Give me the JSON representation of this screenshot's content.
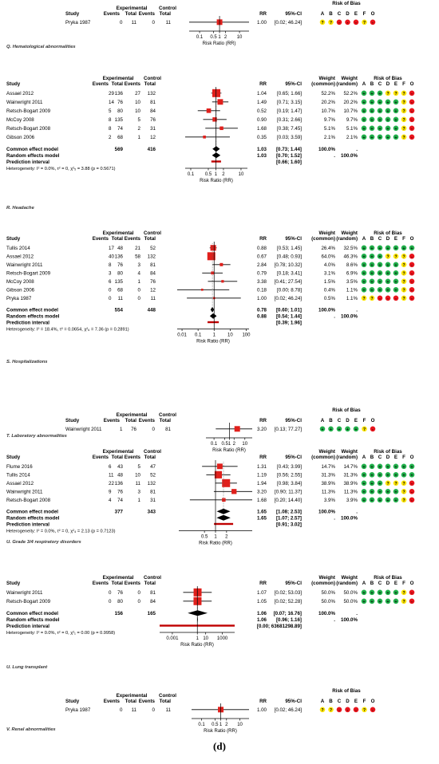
{
  "figure_label": "(d)",
  "labels": {
    "study": "Study",
    "experimental": "Experimental",
    "control": "Control",
    "events": "Events",
    "total": "Total",
    "rr": "RR",
    "ci": "95%-CI",
    "weight": "Weight",
    "common": "(common)",
    "random": "(random)",
    "rob": "Risk of Bias",
    "rob_letters": [
      "A",
      "B",
      "C",
      "D",
      "E",
      "F",
      "O"
    ],
    "common_model": "Common effect model",
    "random_model": "Random effects model",
    "prediction": "Prediction interval",
    "xlabel": "Risk Ratio (RR)"
  },
  "colors": {
    "low": "#22b14c",
    "unclear": "#ffe600",
    "high": "#e8141c",
    "marker": "#e0201c"
  },
  "chart_data": [
    {
      "type": "forest",
      "title": "Q. Hematological abnormalities",
      "columns": "simple",
      "xlim": [
        0.03,
        30
      ],
      "ticks": [
        "0.1",
        "0.5",
        "1",
        "2",
        "10"
      ],
      "studies": [
        {
          "study": "Pryka 1987",
          "exp_events": "0",
          "exp_total": "11",
          "ctl_events": "0",
          "ctl_total": "11",
          "rr": 1.0,
          "rr_text": "1.00",
          "lo": 0.02,
          "hi": 46.24,
          "ci_text": "[0.02; 46.24]",
          "w": 1,
          "rob": "uuhhhuh"
        }
      ]
    },
    {
      "type": "forest",
      "title": "R. Headache",
      "columns": "full",
      "xlim": [
        0.06,
        18
      ],
      "ticks": [
        "0.1",
        "0.5",
        "1",
        "2",
        "10"
      ],
      "studies": [
        {
          "study": "Assael 2012",
          "exp_events": "29",
          "exp_total": "136",
          "ctl_events": "27",
          "ctl_total": "132",
          "rr": 1.04,
          "rr_text": "1.04",
          "lo": 0.65,
          "hi": 1.66,
          "ci_text": "[0.65; 1.66]",
          "w_common": "52.2%",
          "w_random": "52.2%",
          "w": 52.2,
          "rob": "llluuuh"
        },
        {
          "study": "Wainwright 2011",
          "exp_events": "14",
          "exp_total": "76",
          "ctl_events": "10",
          "ctl_total": "81",
          "rr": 1.49,
          "rr_text": "1.49",
          "lo": 0.71,
          "hi": 3.15,
          "ci_text": "[0.71; 3.15]",
          "w_common": "20.2%",
          "w_random": "20.2%",
          "w": 20.2,
          "rob": "llllluh"
        },
        {
          "study": "Retsch-Bogart 2009",
          "exp_events": "5",
          "exp_total": "80",
          "ctl_events": "10",
          "ctl_total": "84",
          "rr": 0.52,
          "rr_text": "0.52",
          "lo": 0.19,
          "hi": 1.47,
          "ci_text": "[0.19; 1.47]",
          "w_common": "10.7%",
          "w_random": "10.7%",
          "w": 10.7,
          "rob": "llllluh"
        },
        {
          "study": "McCoy 2008",
          "exp_events": "8",
          "exp_total": "135",
          "ctl_events": "5",
          "ctl_total": "76",
          "rr": 0.9,
          "rr_text": "0.90",
          "lo": 0.31,
          "hi": 2.66,
          "ci_text": "[0.31; 2.66]",
          "w_common": "9.7%",
          "w_random": "9.7%",
          "w": 9.7,
          "rob": "llllluh"
        },
        {
          "study": "Retsch-Bogart 2008",
          "exp_events": "8",
          "exp_total": "74",
          "ctl_events": "2",
          "ctl_total": "31",
          "rr": 1.68,
          "rr_text": "1.68",
          "lo": 0.38,
          "hi": 7.45,
          "ci_text": "[0.38; 7.45]",
          "w_common": "5.1%",
          "w_random": "5.1%",
          "w": 5.1,
          "rob": "llllluh"
        },
        {
          "study": "Gibson 2006",
          "exp_events": "2",
          "exp_total": "68",
          "ctl_events": "1",
          "ctl_total": "12",
          "rr": 0.35,
          "rr_text": "0.35",
          "lo": 0.03,
          "hi": 3.59,
          "ci_text": "[0.03; 3.59]",
          "w_common": "2.1%",
          "w_random": "2.1%",
          "w": 2.1,
          "rob": "llllluh"
        }
      ],
      "common": {
        "exp_total": "569",
        "ctl_total": "416",
        "rr": 1.03,
        "rr_text": "1.03",
        "lo": 0.73,
        "hi": 1.44,
        "ci_text": "[0.73; 1.44]",
        "w_common": "100.0%",
        "w_random": "."
      },
      "random": {
        "rr": 1.03,
        "rr_text": "1.03",
        "lo": 0.7,
        "hi": 1.52,
        "ci_text": "[0.70; 1.52]",
        "w_common": ".",
        "w_random": "100.0%"
      },
      "prediction": {
        "lo": 0.66,
        "hi": 1.6,
        "ci_text": "[0.66; 1.60]"
      },
      "heterogeneity": "Heterogeneity: I² = 0.0%, τ² = 0, χ²₅ = 3.88 (p = 0.5671)"
    },
    {
      "type": "forest",
      "title": "S. Hospitalizations",
      "columns": "full",
      "xlim": [
        0.005,
        150
      ],
      "ticks": [
        "0.01",
        "0.1",
        "1",
        "10",
        "100"
      ],
      "studies": [
        {
          "study": "Tullis 2014",
          "exp_events": "17",
          "exp_total": "48",
          "ctl_events": "21",
          "ctl_total": "52",
          "rr": 0.88,
          "rr_text": "0.88",
          "lo": 0.53,
          "hi": 1.45,
          "ci_text": "[0.53; 1.45]",
          "w_common": "26.4%",
          "w_random": "32.5%",
          "w": 26.4,
          "rob": "lllllll"
        },
        {
          "study": "Assael 2012",
          "exp_events": "40",
          "exp_total": "136",
          "ctl_events": "58",
          "ctl_total": "132",
          "rr": 0.67,
          "rr_text": "0.67",
          "lo": 0.48,
          "hi": 0.93,
          "ci_text": "[0.48; 0.93]",
          "w_common": "64.0%",
          "w_random": "46.3%",
          "w": 64.0,
          "rob": "llluuuh"
        },
        {
          "study": "Wainwright 2011",
          "exp_events": "8",
          "exp_total": "76",
          "ctl_events": "3",
          "ctl_total": "81",
          "rr": 2.84,
          "rr_text": "2.84",
          "lo": 0.78,
          "hi": 10.32,
          "ci_text": "[0.78; 10.32]",
          "w_common": "4.0%",
          "w_random": "8.6%",
          "w": 4.0,
          "rob": "llllluh"
        },
        {
          "study": "Retsch-Bogart 2009",
          "exp_events": "3",
          "exp_total": "80",
          "ctl_events": "4",
          "ctl_total": "84",
          "rr": 0.79,
          "rr_text": "0.79",
          "lo": 0.18,
          "hi": 3.41,
          "ci_text": "[0.18; 3.41]",
          "w_common": "3.1%",
          "w_random": "6.9%",
          "w": 3.1,
          "rob": "llllluh"
        },
        {
          "study": "McCoy 2008",
          "exp_events": "6",
          "exp_total": "135",
          "ctl_events": "1",
          "ctl_total": "76",
          "rr": 3.38,
          "rr_text": "3.38",
          "lo": 0.41,
          "hi": 27.54,
          "ci_text": "[0.41; 27.54]",
          "w_common": "1.5%",
          "w_random": "3.5%",
          "w": 1.5,
          "rob": "llllluh"
        },
        {
          "study": "Gibson 2006",
          "exp_events": "0",
          "exp_total": "68",
          "ctl_events": "0",
          "ctl_total": "12",
          "rr": 0.18,
          "rr_text": "0.18",
          "lo": 0.0,
          "hi": 8.78,
          "ci_text": "[0.00; 8.78]",
          "w_common": "0.4%",
          "w_random": "1.1%",
          "w": 0.4,
          "rob": "llllluh"
        },
        {
          "study": "Pryka 1987",
          "exp_events": "0",
          "exp_total": "11",
          "ctl_events": "0",
          "ctl_total": "11",
          "rr": 1.0,
          "rr_text": "1.00",
          "lo": 0.02,
          "hi": 46.24,
          "ci_text": "[0.02; 46.24]",
          "w_common": "0.5%",
          "w_random": "1.1%",
          "w": 0.5,
          "rob": "uuhhhuh"
        }
      ],
      "common": {
        "exp_total": "554",
        "ctl_total": "448",
        "rr": 0.78,
        "rr_text": "0.78",
        "lo": 0.6,
        "hi": 1.01,
        "ci_text": "[0.60; 1.01]",
        "w_common": "100.0%",
        "w_random": "."
      },
      "random": {
        "rr": 0.88,
        "rr_text": "0.88",
        "lo": 0.54,
        "hi": 1.44,
        "ci_text": "[0.54; 1.44]",
        "w_common": ".",
        "w_random": "100.0%"
      },
      "prediction": {
        "lo": 0.39,
        "hi": 1.96,
        "ci_text": "[0.39; 1.96]"
      },
      "heterogeneity": "Heterogeneity: I² = 18.4%, τ² = 0.0654, χ²₆ = 7.36 (p = 0.2891)"
    },
    {
      "type": "forest",
      "title": "T. Laboratory abnormalities",
      "columns": "simple",
      "xlim": [
        0.03,
        30
      ],
      "ticks": [
        "0.1",
        "0.5",
        "1",
        "2",
        "10"
      ],
      "studies": [
        {
          "study": "Wainwright 2011",
          "exp_events": "1",
          "exp_total": "76",
          "ctl_events": "0",
          "ctl_total": "81",
          "rr": 3.2,
          "rr_text": "3.20",
          "lo": 0.13,
          "hi": 77.27,
          "ci_text": "[0.13; 77.27]",
          "w": 1,
          "rob": "llllluh"
        }
      ]
    },
    {
      "type": "forest",
      "title": "U. Grade 3/4 respiratory disorders",
      "columns": "full",
      "xlim": [
        0.1,
        10
      ],
      "ticks": [
        "0.5",
        "1",
        "2"
      ],
      "studies": [
        {
          "study": "Flume 2016",
          "exp_events": "6",
          "exp_total": "43",
          "ctl_events": "5",
          "ctl_total": "47",
          "rr": 1.31,
          "rr_text": "1.31",
          "lo": 0.43,
          "hi": 3.99,
          "ci_text": "[0.43; 3.99]",
          "w_common": "14.7%",
          "w_random": "14.7%",
          "w": 14.7,
          "rob": "lllllll"
        },
        {
          "study": "Tullis 2014",
          "exp_events": "11",
          "exp_total": "48",
          "ctl_events": "10",
          "ctl_total": "52",
          "rr": 1.19,
          "rr_text": "1.19",
          "lo": 0.56,
          "hi": 2.55,
          "ci_text": "[0.56; 2.55]",
          "w_common": "31.3%",
          "w_random": "31.3%",
          "w": 31.3,
          "rob": "lllllll"
        },
        {
          "study": "Assael 2012",
          "exp_events": "22",
          "exp_total": "136",
          "ctl_events": "11",
          "ctl_total": "132",
          "rr": 1.94,
          "rr_text": "1.94",
          "lo": 0.98,
          "hi": 3.84,
          "ci_text": "[0.98; 3.84]",
          "w_common": "38.9%",
          "w_random": "38.9%",
          "w": 38.9,
          "rob": "llluuuh"
        },
        {
          "study": "Wainwright 2011",
          "exp_events": "9",
          "exp_total": "76",
          "ctl_events": "3",
          "ctl_total": "81",
          "rr": 3.2,
          "rr_text": "3.20",
          "lo": 0.9,
          "hi": 11.37,
          "ci_text": "[0.90; 11.37]",
          "w_common": "11.3%",
          "w_random": "11.3%",
          "w": 11.3,
          "rob": "llllluh"
        },
        {
          "study": "Retsch-Bogart 2008",
          "exp_events": "4",
          "exp_total": "74",
          "ctl_events": "1",
          "ctl_total": "31",
          "rr": 1.68,
          "rr_text": "1.68",
          "lo": 0.2,
          "hi": 14.4,
          "ci_text": "[0.20; 14.40]",
          "w_common": "3.9%",
          "w_random": "3.9%",
          "w": 3.9,
          "rob": "llllluh"
        }
      ],
      "common": {
        "exp_total": "377",
        "ctl_total": "343",
        "rr": 1.65,
        "rr_text": "1.65",
        "lo": 1.08,
        "hi": 2.53,
        "ci_text": "[1.08; 2.53]",
        "w_common": "100.0%",
        "w_random": "."
      },
      "random": {
        "rr": 1.65,
        "rr_text": "1.65",
        "lo": 1.07,
        "hi": 2.57,
        "ci_text": "[1.07; 2.57]",
        "w_common": ".",
        "w_random": "100.0%"
      },
      "prediction": {
        "lo": 0.91,
        "hi": 3.02,
        "ci_text": "[0.91; 3.02]"
      },
      "heterogeneity": "Heterogeneity: I² = 0.0%, τ² = 0, χ²₄ = 2.13 (p = 0.7123)"
    },
    {
      "type": "forest",
      "title": "U. Lung transplant",
      "columns": "full",
      "xlim": [
        3e-05,
        30000
      ],
      "ticks": [
        "0.001",
        "1",
        "10",
        "1000"
      ],
      "studies": [
        {
          "study": "Wainwright 2011",
          "exp_events": "0",
          "exp_total": "76",
          "ctl_events": "0",
          "ctl_total": "81",
          "rr": 1.07,
          "rr_text": "1.07",
          "lo": 0.02,
          "hi": 53.03,
          "ci_text": "[0.02; 53.03]",
          "w_common": "50.0%",
          "w_random": "50.0%",
          "w": 50,
          "rob": "llllluh"
        },
        {
          "study": "Retsch-Bogart 2009",
          "exp_events": "0",
          "exp_total": "80",
          "ctl_events": "0",
          "ctl_total": "84",
          "rr": 1.05,
          "rr_text": "1.05",
          "lo": 0.02,
          "hi": 52.28,
          "ci_text": "[0.02; 52.28]",
          "w_common": "50.0%",
          "w_random": "50.0%",
          "w": 50,
          "rob": "llllluh"
        }
      ],
      "common": {
        "exp_total": "156",
        "ctl_total": "165",
        "rr": 1.06,
        "rr_text": "1.06",
        "lo": 0.07,
        "hi": 16.76,
        "ci_text": "[0.07; 16.76]",
        "w_common": "100.0%",
        "w_random": "."
      },
      "random": {
        "rr": 1.06,
        "rr_text": "1.06",
        "lo": 0.96,
        "hi": 1.16,
        "ci_text": "[0.96; 1.16]",
        "w_common": ".",
        "w_random": "100.0%"
      },
      "prediction": {
        "lo": 0.0,
        "hi": 63681298.89,
        "ci_text": "[0.00; 63681298.89]"
      },
      "heterogeneity": "Heterogeneity: I² = 0.0%, τ² = 0, χ²₁ = 0.00 (p = 0.9958)"
    },
    {
      "type": "forest",
      "title": "V. Renal abnormalities",
      "columns": "simple",
      "xlim": [
        0.03,
        30
      ],
      "ticks": [
        "0.1",
        "0.5",
        "1",
        "2",
        "10"
      ],
      "studies": [
        {
          "study": "Pryka 1987",
          "exp_events": "0",
          "exp_total": "11",
          "ctl_events": "0",
          "ctl_total": "11",
          "rr": 1.0,
          "rr_text": "1.00",
          "lo": 0.02,
          "hi": 46.24,
          "ci_text": "[0.02; 46.24]",
          "w": 1,
          "rob": "uuhhhuh"
        }
      ]
    }
  ]
}
